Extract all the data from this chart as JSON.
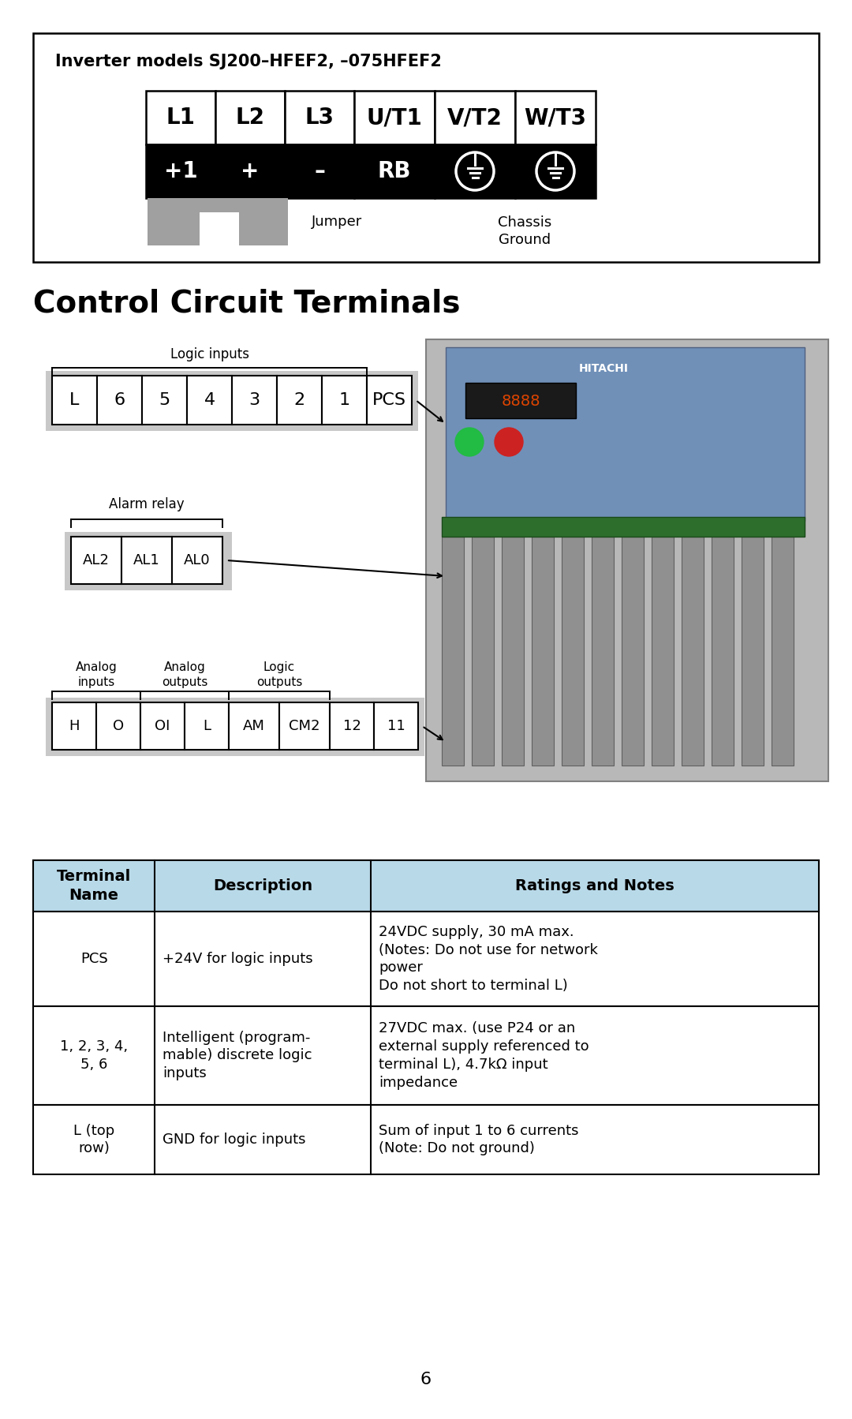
{
  "bg_color": "#ffffff",
  "page_number": "6",
  "inverter_title": "Inverter models SJ200–HFEF2, –075HFEF2",
  "top_row_labels": [
    "L1",
    "L2",
    "L3",
    "U/T1",
    "V/T2",
    "W/T3"
  ],
  "bottom_row_labels": [
    "+1",
    "+",
    "–",
    "RB",
    "⊕",
    "⊕"
  ],
  "jumper_label": "Jumper",
  "chassis_ground_label": "Chassis\nGround",
  "section_title": "Control Circuit Terminals",
  "logic_inputs_label": "Logic inputs",
  "logic_row": [
    "L",
    "6",
    "5",
    "4",
    "3",
    "2",
    "1",
    "PCS"
  ],
  "alarm_relay_label": "Alarm relay",
  "alarm_row": [
    "AL2",
    "AL1",
    "AL0"
  ],
  "analog_inputs_label": "Analog\ninputs",
  "analog_outputs_label": "Analog\noutputs",
  "logic_outputs_label": "Logic\noutputs",
  "bottom_row": [
    "H",
    "O",
    "OI",
    "L",
    "AM",
    "CM2",
    "12",
    "11"
  ],
  "table_header_bg": "#b8d9e8",
  "table_border_color": "#000000",
  "table_headers": [
    "Terminal\nName",
    "Description",
    "Ratings and Notes"
  ],
  "table_rows": [
    [
      "PCS",
      "+24V for logic inputs",
      "24VDC supply, 30 mA max.\n(Notes: Do not use for network\npower\nDo not short to terminal L)"
    ],
    [
      "1, 2, 3, 4,\n5, 6",
      "Intelligent (program-\nmable) discrete logic\ninputs",
      "27VDC max. (use P24 or an\nexternal supply referenced to\nterminal L), 4.7kΩ input\nimpedance"
    ],
    [
      "L (top\nrow)",
      "GND for logic inputs",
      "Sum of input 1 to 6 currents\n(Note: Do not ground)"
    ]
  ]
}
